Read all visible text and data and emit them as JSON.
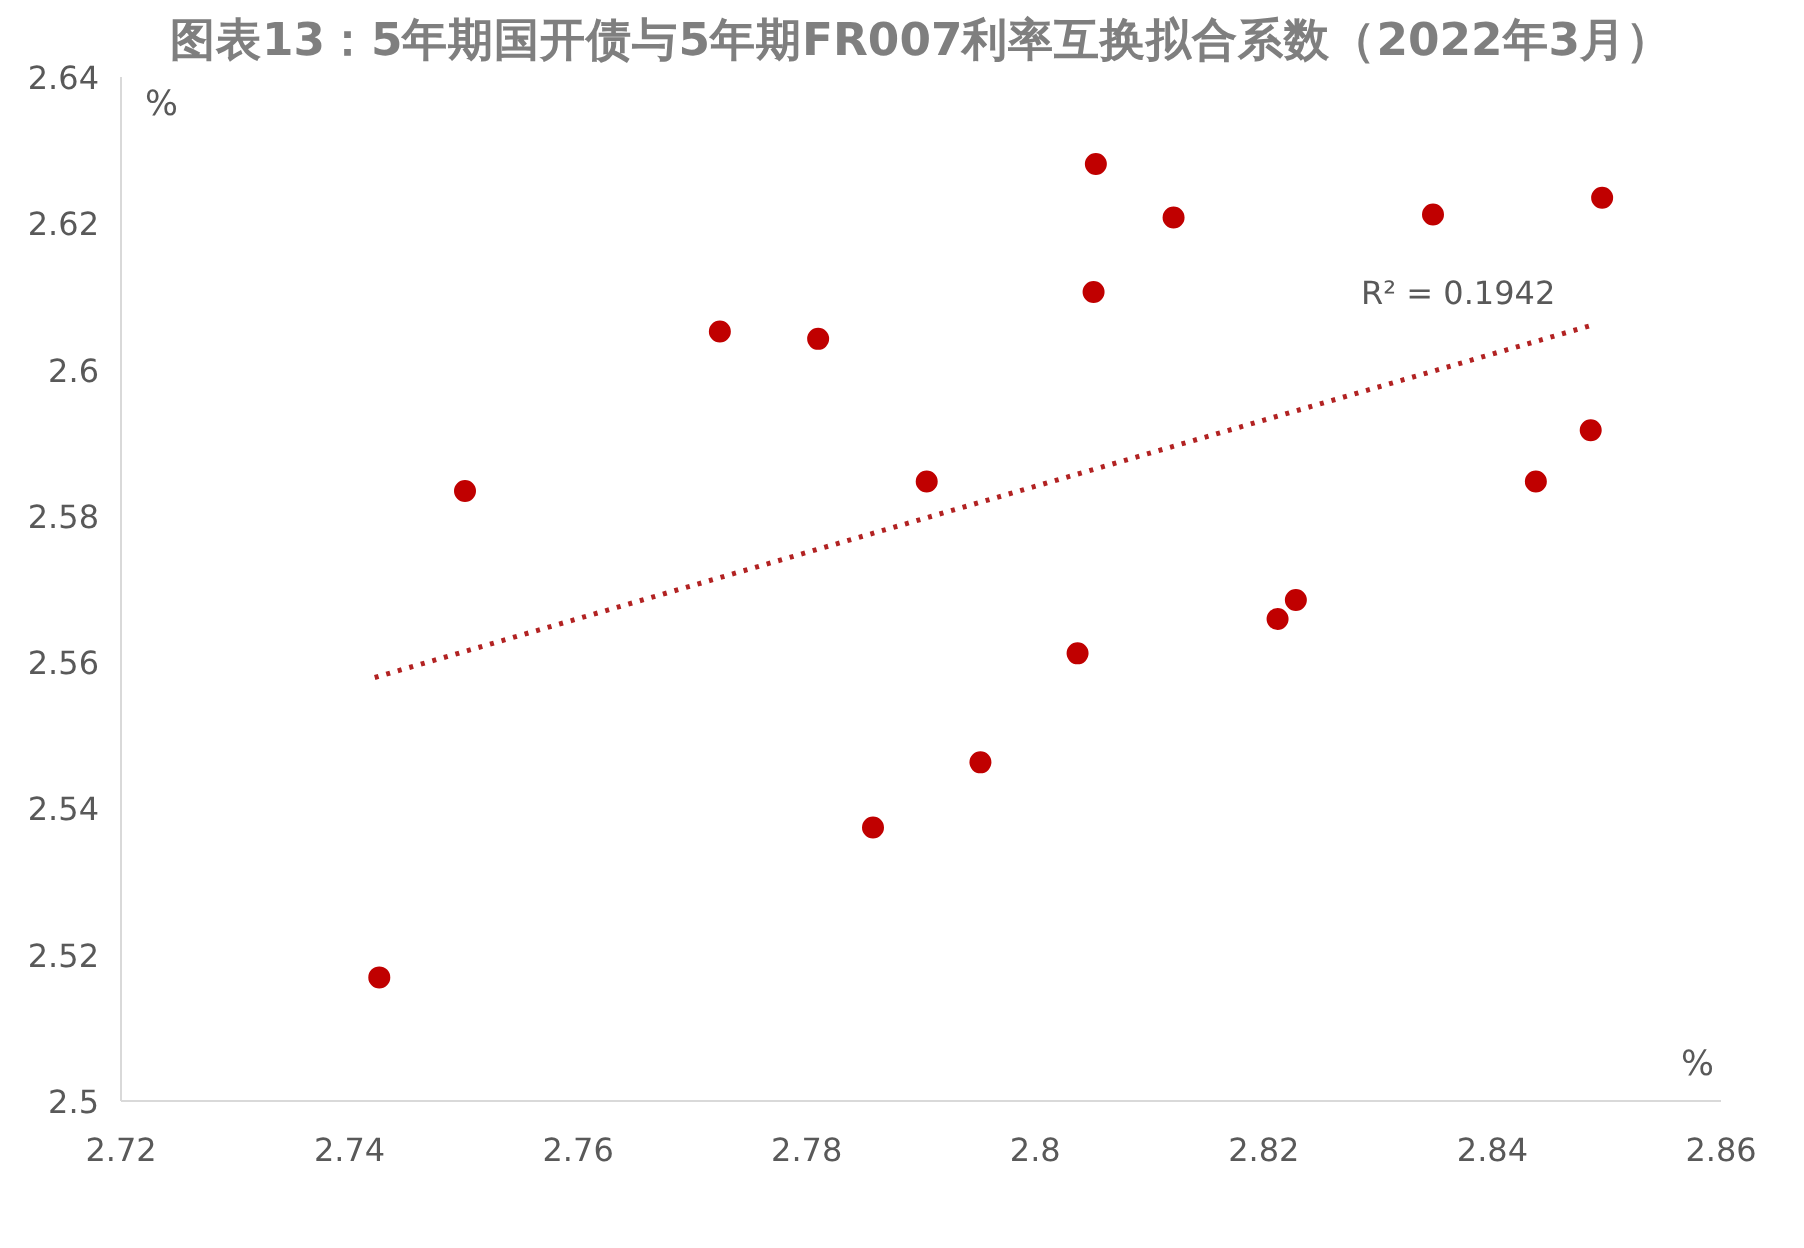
{
  "chart_data": {
    "type": "scatter",
    "title": "图表13：5年期国开债与5年期FR007利率互换拟合系数（2022年3月）",
    "xlabel": "%",
    "ylabel": "%",
    "xlim": [
      2.72,
      2.86
    ],
    "xticks": [
      2.72,
      2.74,
      2.76,
      2.78,
      {
        "value": 2.8,
        "label": "2.8"
      },
      2.82,
      2.84,
      2.86
    ],
    "ylim": [
      2.5,
      2.64
    ],
    "yticks": [
      {
        "value": 2.5,
        "label": "2.5"
      },
      2.52,
      2.54,
      2.56,
      2.58,
      {
        "value": 2.6,
        "label": "2.6"
      },
      2.62,
      2.64
    ],
    "grid": false,
    "series": [
      {
        "marker": "circle",
        "color": "#c00000",
        "x": [
          2.7426,
          2.7501,
          2.7724,
          2.781,
          2.7905,
          2.7858,
          2.7952,
          2.8037,
          2.8053,
          2.8051,
          2.8121,
          2.8212,
          2.8228,
          2.8348,
          2.8438,
          2.8486,
          2.8496
        ],
        "values": [
          2.5169,
          2.5834,
          2.6052,
          2.6042,
          2.5847,
          2.5374,
          2.5463,
          2.5612,
          2.6281,
          2.6106,
          2.6208,
          2.5659,
          2.5685,
          2.6212,
          2.5847,
          2.5917,
          2.6235
        ]
      },
      {
        "type": "line",
        "color": "#b22222",
        "line_style": "dotted",
        "x": [
          2.7422,
          2.849
        ],
        "values": [
          2.5579,
          2.6062
        ]
      }
    ],
    "annotations": [
      "R² = 0.1942"
    ]
  }
}
